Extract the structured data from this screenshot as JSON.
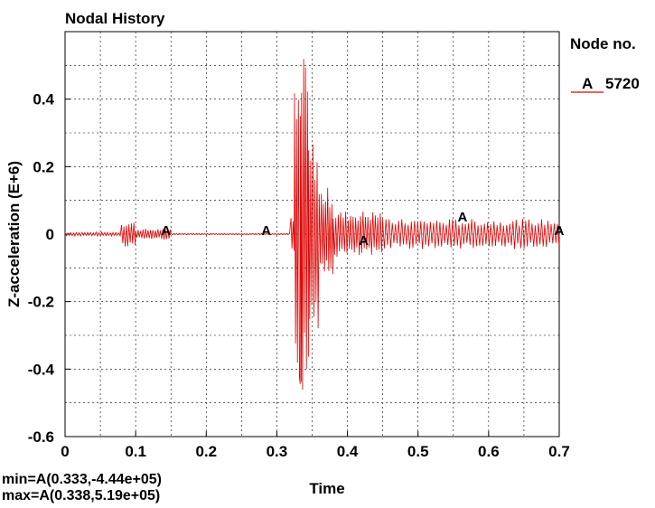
{
  "chart_data": {
    "type": "line",
    "title": "Nodal History",
    "xlabel": "Time",
    "ylabel": "Z-acceleration (E+6)",
    "xlim": [
      0,
      0.7
    ],
    "ylim": [
      -0.6,
      0.6
    ],
    "x_ticks": [
      0,
      0.1,
      0.2,
      0.3,
      0.4,
      0.5,
      0.6,
      0.7
    ],
    "x_tick_labels": [
      "0",
      "0.1",
      "0.2",
      "0.3",
      "0.4",
      "0.5",
      "0.6",
      "0.7"
    ],
    "y_ticks": [
      -0.6,
      -0.4,
      -0.2,
      0,
      0.2,
      0.4
    ],
    "y_tick_labels": [
      "-0.6",
      "-0.4",
      "-0.2",
      "0",
      "0.2",
      "0.4"
    ],
    "grid": true,
    "legend": {
      "title": "Node no.",
      "placement": "top-right",
      "entries": [
        {
          "marker": "A",
          "label": "5720",
          "color": "#e00000"
        }
      ]
    },
    "series": [
      {
        "marker_letter": "A",
        "color": "#e00000",
        "marker_points": [
          {
            "x": 0.143,
            "y": 0.0
          },
          {
            "x": 0.285,
            "y": 0.0
          },
          {
            "x": 0.423,
            "y": -0.03
          },
          {
            "x": 0.563,
            "y": 0.04
          },
          {
            "x": 0.7,
            "y": 0.0
          }
        ],
        "segments": [
          {
            "t0": 0.0,
            "t1": 0.08,
            "amp": 0.006,
            "period": 0.004
          },
          {
            "t0": 0.08,
            "t1": 0.1,
            "amp": 0.038,
            "period": 0.0035
          },
          {
            "t0": 0.1,
            "t1": 0.15,
            "amp": 0.016,
            "period": 0.0035
          },
          {
            "t0": 0.15,
            "t1": 0.32,
            "amp": 0.002,
            "period": 0.004
          },
          {
            "t0": 0.32,
            "t1": 0.325,
            "amp": 0.05,
            "period": 0.003
          },
          {
            "t0": 0.325,
            "t1": 0.335,
            "amp": 0.44,
            "period": 0.0028
          },
          {
            "t0": 0.335,
            "t1": 0.345,
            "amp": 0.5,
            "period": 0.0028
          },
          {
            "t0": 0.345,
            "t1": 0.36,
            "amp": 0.28,
            "period": 0.003
          },
          {
            "t0": 0.36,
            "t1": 0.38,
            "amp": 0.14,
            "period": 0.003
          },
          {
            "t0": 0.38,
            "t1": 0.45,
            "amp": 0.07,
            "period": 0.0035
          },
          {
            "t0": 0.45,
            "t1": 0.7,
            "amp": 0.045,
            "period": 0.0045
          }
        ]
      }
    ],
    "annotations": [
      {
        "kind": "min",
        "text": "min=A(0.333,-4.44e+05)",
        "x": 0.333,
        "y": -0.444
      },
      {
        "kind": "max",
        "text": "max=A(0.338,5.19e+05)",
        "x": 0.338,
        "y": 0.519
      }
    ]
  }
}
